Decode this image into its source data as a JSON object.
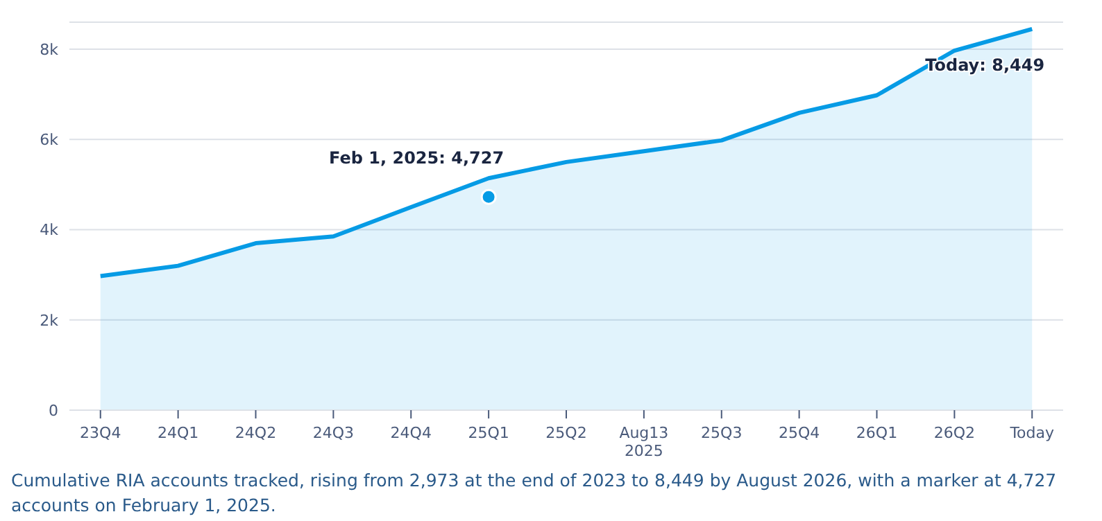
{
  "chart_data": {
    "type": "area",
    "categories": [
      "23Q4",
      "24Q1",
      "24Q2",
      "24Q3",
      "24Q4",
      "25Q1",
      "25Q2",
      "Aug13\n2025",
      "25Q3",
      "25Q4",
      "26Q1",
      "26Q2",
      "Today"
    ],
    "series": [
      {
        "color": "#069be5",
        "marker": "none",
        "values": [
          2973,
          3200,
          3700,
          3850,
          4500,
          5140,
          5500,
          5740,
          5980,
          6590,
          6980,
          7970,
          8449
        ]
      },
      {
        "type": "scatter",
        "color": "#069be5",
        "marker": "circle",
        "x": [
          "25Q1"
        ],
        "values": [
          4727
        ]
      }
    ],
    "ylim": [
      0,
      8600
    ],
    "yticks": [
      0,
      {
        "value": 2000,
        "label": "2k"
      },
      {
        "value": 4000,
        "label": "4k"
      },
      {
        "value": 6000,
        "label": "6k"
      },
      {
        "value": 8000,
        "label": "8k"
      }
    ],
    "grid": "y",
    "legend": false,
    "annotations": [
      {
        "text": "Feb 1, 2025: 4,727",
        "x": "25Q1",
        "y": 4727
      },
      {
        "text": "Today: 8,449",
        "x": "Today",
        "y": 8449
      },
      "Cumulative RIA accounts tracked, rising from 2,973 at the end of 2023 to 8,449 by August 2026, with a marker at 4,727 accounts on February 1, 2025."
    ]
  }
}
